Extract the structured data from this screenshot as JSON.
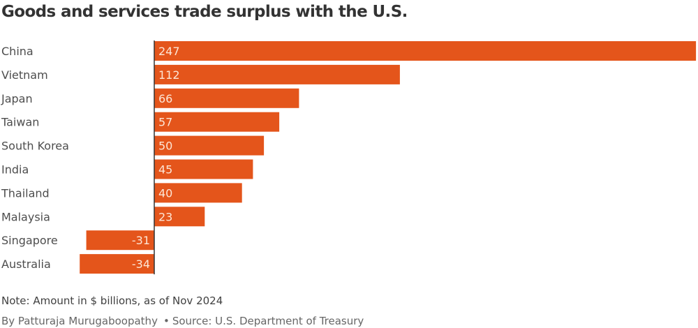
{
  "chart_data": {
    "type": "bar",
    "orientation": "horizontal",
    "title": "Goods and services trade surplus with the U.S.",
    "categories": [
      "China",
      "Vietnam",
      "Japan",
      "Taiwan",
      "South Korea",
      "India",
      "Thailand",
      "Malaysia",
      "Singapore",
      "Australia"
    ],
    "values": [
      247,
      112,
      66,
      57,
      50,
      45,
      40,
      23,
      -31,
      -34
    ],
    "value_labels": [
      "247",
      "112",
      "66",
      "57",
      "50",
      "45",
      "40",
      "23",
      "-31",
      "-34"
    ],
    "xlabel": "",
    "ylabel": "",
    "xlim": [
      -34,
      247
    ],
    "grid": false,
    "legend": "none",
    "bar_color": "#e4551b",
    "axis_color": "#333333"
  },
  "footer": {
    "note": "Note: Amount in $ billions, as of Nov 2024",
    "byline": "By Patturaja Murugaboopathy",
    "separator": "•",
    "source": "Source: U.S. Department of Treasury"
  }
}
